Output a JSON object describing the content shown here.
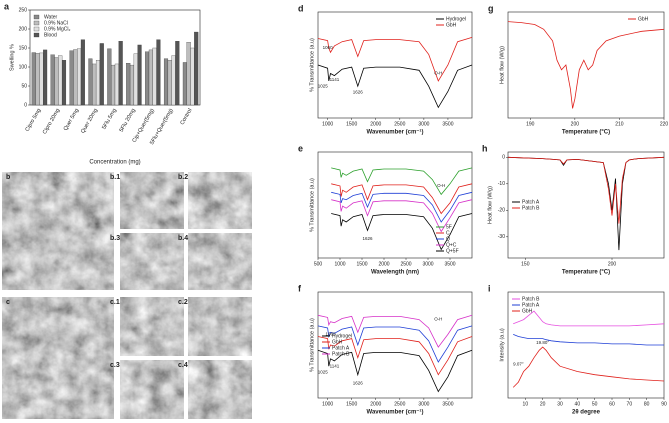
{
  "chart_data": [
    {
      "type": "bar",
      "panel": "a",
      "ylabel": "Swelling %",
      "xlabel": "Concentration (mg)",
      "categories": [
        "Cipro 5mg",
        "Cipro 20mg",
        "Quer 5mg",
        "Quer 20mg",
        "5Flu 5mg",
        "5Flu 20mg",
        "Cip+Quer(5mg)",
        "5Flu+Quer(5mg)",
        "Control"
      ],
      "series": [
        {
          "name": "Water",
          "color": "#8a8a8a",
          "values": [
            138,
            132,
            143,
            122,
            148,
            110,
            140,
            122,
            112
          ]
        },
        {
          "name": "0.9% NaCl",
          "color": "#bdbdbd",
          "values": [
            136,
            125,
            146,
            108,
            105,
            105,
            145,
            118,
            165
          ]
        },
        {
          "name": "0.9% MgCl₂",
          "color": "#e0e0e0",
          "values": [
            137,
            130,
            148,
            118,
            108,
            135,
            150,
            130,
            150
          ]
        },
        {
          "name": "Blood",
          "color": "#555555",
          "values": [
            145,
            118,
            172,
            162,
            168,
            158,
            172,
            168,
            192
          ]
        }
      ],
      "ylim": [
        0,
        250
      ],
      "yticks": [
        0,
        50,
        100,
        150,
        200,
        250
      ],
      "legend": "upper left"
    },
    {
      "type": "line",
      "panel": "d",
      "ylabel": "% Transmittance (a.u)",
      "xlabel": "Wavenumber (cm⁻¹)",
      "x": [
        800,
        1000,
        1025,
        1060,
        1141,
        1300,
        1500,
        1626,
        1750,
        2000,
        2500,
        2900,
        3100,
        3300,
        3500,
        3700,
        4000
      ],
      "series": [
        {
          "name": "Hydrogel",
          "color": "#000000",
          "values": [
            50,
            47,
            35,
            42,
            40,
            46,
            48,
            30,
            47,
            48,
            48,
            45,
            30,
            10,
            25,
            45,
            50
          ]
        },
        {
          "name": "GbH",
          "color": "#e0201b",
          "values": [
            75,
            73,
            66,
            62,
            68,
            72,
            74,
            58,
            73,
            74,
            74,
            72,
            60,
            35,
            50,
            72,
            76
          ]
        }
      ],
      "xlim": [
        800,
        4000
      ],
      "xticks": [
        1000,
        1500,
        2000,
        2500,
        3000,
        3500
      ],
      "ylim": [
        0,
        100
      ],
      "legend": "upper right",
      "annotations": [
        {
          "text": "1060",
          "x": 1000,
          "y": 66
        },
        {
          "text": "1141",
          "x": 1141,
          "y": 36
        },
        {
          "text": "1025",
          "x": 900,
          "y": 30
        },
        {
          "text": "1626",
          "x": 1626,
          "y": 24
        },
        {
          "text": "O-H",
          "x": 3300,
          "y": 42
        }
      ]
    },
    {
      "type": "line",
      "panel": "e",
      "ylabel": "% Transmittance (a.u)",
      "xlabel": "Wavelength (nm)",
      "x": [
        800,
        1000,
        1025,
        1060,
        1141,
        1300,
        1500,
        1626,
        1750,
        2000,
        2500,
        2900,
        3100,
        3300,
        3500,
        3700,
        4000
      ],
      "series": [
        {
          "name": "5F",
          "color": "#2ca02c",
          "values": [
            85,
            83,
            76,
            80,
            78,
            82,
            84,
            72,
            83,
            84,
            84,
            82,
            74,
            60,
            70,
            82,
            85
          ]
        },
        {
          "name": "C",
          "color": "#e0201b",
          "values": [
            70,
            68,
            58,
            64,
            62,
            67,
            69,
            55,
            68,
            69,
            69,
            67,
            57,
            42,
            52,
            67,
            70
          ]
        },
        {
          "name": "Q",
          "color": "#1f3fd6",
          "values": [
            62,
            60,
            52,
            56,
            55,
            59,
            61,
            48,
            60,
            61,
            61,
            59,
            50,
            34,
            45,
            59,
            62
          ]
        },
        {
          "name": "Q+C",
          "color": "#d630c8",
          "values": [
            55,
            53,
            44,
            49,
            47,
            52,
            54,
            40,
            53,
            54,
            54,
            52,
            42,
            25,
            38,
            52,
            55
          ]
        },
        {
          "name": "Q+5F",
          "color": "#000000",
          "values": [
            42,
            40,
            30,
            36,
            34,
            39,
            41,
            26,
            40,
            41,
            41,
            39,
            28,
            8,
            22,
            39,
            42
          ]
        }
      ],
      "xlim": [
        500,
        4000
      ],
      "xticks": [
        500,
        1000,
        1500,
        2000,
        2500,
        3000,
        3500
      ],
      "ylim": [
        0,
        100
      ],
      "legend": "lower right",
      "annotations": [
        {
          "text": "1626",
          "x": 1626,
          "y": 18
        },
        {
          "text": "O-H",
          "x": 3300,
          "y": 68
        }
      ]
    },
    {
      "type": "line",
      "panel": "f",
      "ylabel": "% Transmittance (a.u)",
      "xlabel": "Wavenumber (cm⁻¹)",
      "x": [
        800,
        1000,
        1025,
        1060,
        1141,
        1300,
        1500,
        1626,
        1750,
        2000,
        2500,
        2900,
        3100,
        3300,
        3500,
        3700,
        4000
      ],
      "series": [
        {
          "name": "Hydrogel",
          "color": "#000000",
          "values": [
            45,
            42,
            30,
            37,
            35,
            41,
            43,
            22,
            42,
            43,
            43,
            40,
            26,
            6,
            20,
            40,
            45
          ]
        },
        {
          "name": "GbH",
          "color": "#e0201b",
          "values": [
            58,
            56,
            46,
            50,
            49,
            54,
            56,
            38,
            55,
            56,
            56,
            53,
            42,
            22,
            36,
            53,
            58
          ]
        },
        {
          "name": "Patch A",
          "color": "#1f3fd6",
          "values": [
            68,
            66,
            58,
            62,
            61,
            65,
            67,
            50,
            66,
            67,
            67,
            64,
            54,
            34,
            48,
            64,
            68
          ]
        },
        {
          "name": "Patch B",
          "color": "#d630c8",
          "values": [
            78,
            76,
            69,
            72,
            71,
            75,
            77,
            62,
            76,
            77,
            77,
            74,
            66,
            48,
            60,
            74,
            78
          ]
        }
      ],
      "xlim": [
        800,
        4000
      ],
      "xticks": [
        1000,
        1500,
        2000,
        2500,
        3000,
        3500
      ],
      "ylim": [
        0,
        100
      ],
      "legend": "center left",
      "annotations": [
        {
          "text": "1060",
          "x": 1060,
          "y": 60
        },
        {
          "text": "1141",
          "x": 1141,
          "y": 30
        },
        {
          "text": "1025",
          "x": 900,
          "y": 24
        },
        {
          "text": "1626",
          "x": 1626,
          "y": 14
        },
        {
          "text": "O-H",
          "x": 3300,
          "y": 74
        }
      ]
    },
    {
      "type": "line",
      "panel": "g",
      "ylabel": "Heat flow (W/g)",
      "xlabel": "Temperature (°C)",
      "x": [
        185,
        188,
        191,
        193,
        195,
        196,
        197,
        198,
        199,
        199.5,
        200,
        201,
        202,
        203,
        204,
        205,
        207,
        210,
        215,
        220
      ],
      "series": [
        {
          "name": "GbH",
          "color": "#e0201b",
          "values": [
            -1,
            -1.1,
            -1.3,
            -1.8,
            -3,
            -5,
            -6,
            -5.5,
            -8,
            -10,
            -9,
            -6,
            -5,
            -6,
            -5.5,
            -4,
            -3,
            -2.5,
            -2,
            -1.8
          ]
        }
      ],
      "xlim": [
        185,
        220
      ],
      "xticks": [
        190,
        200,
        210,
        220
      ],
      "ylim": [
        -11,
        0
      ],
      "legend": "upper right"
    },
    {
      "type": "line",
      "panel": "h",
      "ylabel": "Heat flow (W/g)",
      "xlabel": "Temperature (°C)",
      "x": [
        140,
        160,
        170,
        172,
        174,
        180,
        195,
        198,
        200,
        202,
        204,
        206,
        208,
        210,
        215,
        230
      ],
      "series": [
        {
          "name": "Patch A",
          "color": "#000000",
          "values": [
            0,
            -0.5,
            -1,
            -3,
            -1,
            -0.8,
            -2,
            -10,
            -20,
            -8,
            -35,
            -10,
            -2,
            -1,
            -0.5,
            0
          ]
        },
        {
          "name": "Patch B",
          "color": "#e0201b",
          "values": [
            0,
            -0.5,
            -1,
            -2.5,
            -1,
            -0.8,
            -2,
            -12,
            -22,
            -10,
            -25,
            -8,
            -2,
            -1,
            -0.5,
            0
          ]
        }
      ],
      "xlim": [
        140,
        230
      ],
      "xticks": [
        150,
        200
      ],
      "ylim": [
        -38,
        2
      ],
      "yticks": [
        0,
        -10,
        -20,
        -30
      ],
      "legend": "center left"
    },
    {
      "type": "line",
      "panel": "i",
      "ylabel": "Intensity (a.u)",
      "xlabel": "2θ degree",
      "x": [
        3,
        6,
        9,
        12,
        15,
        18,
        20,
        22,
        25,
        30,
        40,
        50,
        60,
        70,
        80,
        90
      ],
      "series": [
        {
          "name": "Patch B",
          "color": "#e64fe0",
          "values": [
            70,
            72,
            74,
            78,
            82,
            76,
            72,
            70,
            69,
            68,
            68,
            68,
            68,
            68,
            69,
            70
          ]
        },
        {
          "name": "Patch A",
          "color": "#1f3fd6",
          "values": [
            60,
            58,
            57,
            56,
            56,
            56,
            56,
            55,
            54,
            53,
            52,
            52,
            51,
            51,
            50,
            50
          ]
        },
        {
          "name": "GbH",
          "color": "#e0201b",
          "values": [
            10,
            15,
            25,
            30,
            38,
            45,
            48,
            45,
            38,
            30,
            25,
            22,
            20,
            18,
            17,
            16
          ]
        }
      ],
      "xlim": [
        0,
        90
      ],
      "xticks": [
        10,
        20,
        30,
        40,
        50,
        60,
        70,
        80,
        90
      ],
      "ylim": [
        0,
        100
      ],
      "legend": "upper left",
      "annotations": [
        {
          "text": "9.07°",
          "x": 6,
          "y": 32
        },
        {
          "text": "19.80°",
          "x": 20,
          "y": 52
        }
      ]
    }
  ],
  "micrographs": [
    "b",
    "b.1",
    "b.2",
    "b.3",
    "b.4",
    "c",
    "c.1",
    "c.2",
    "c.3",
    "c.4"
  ]
}
